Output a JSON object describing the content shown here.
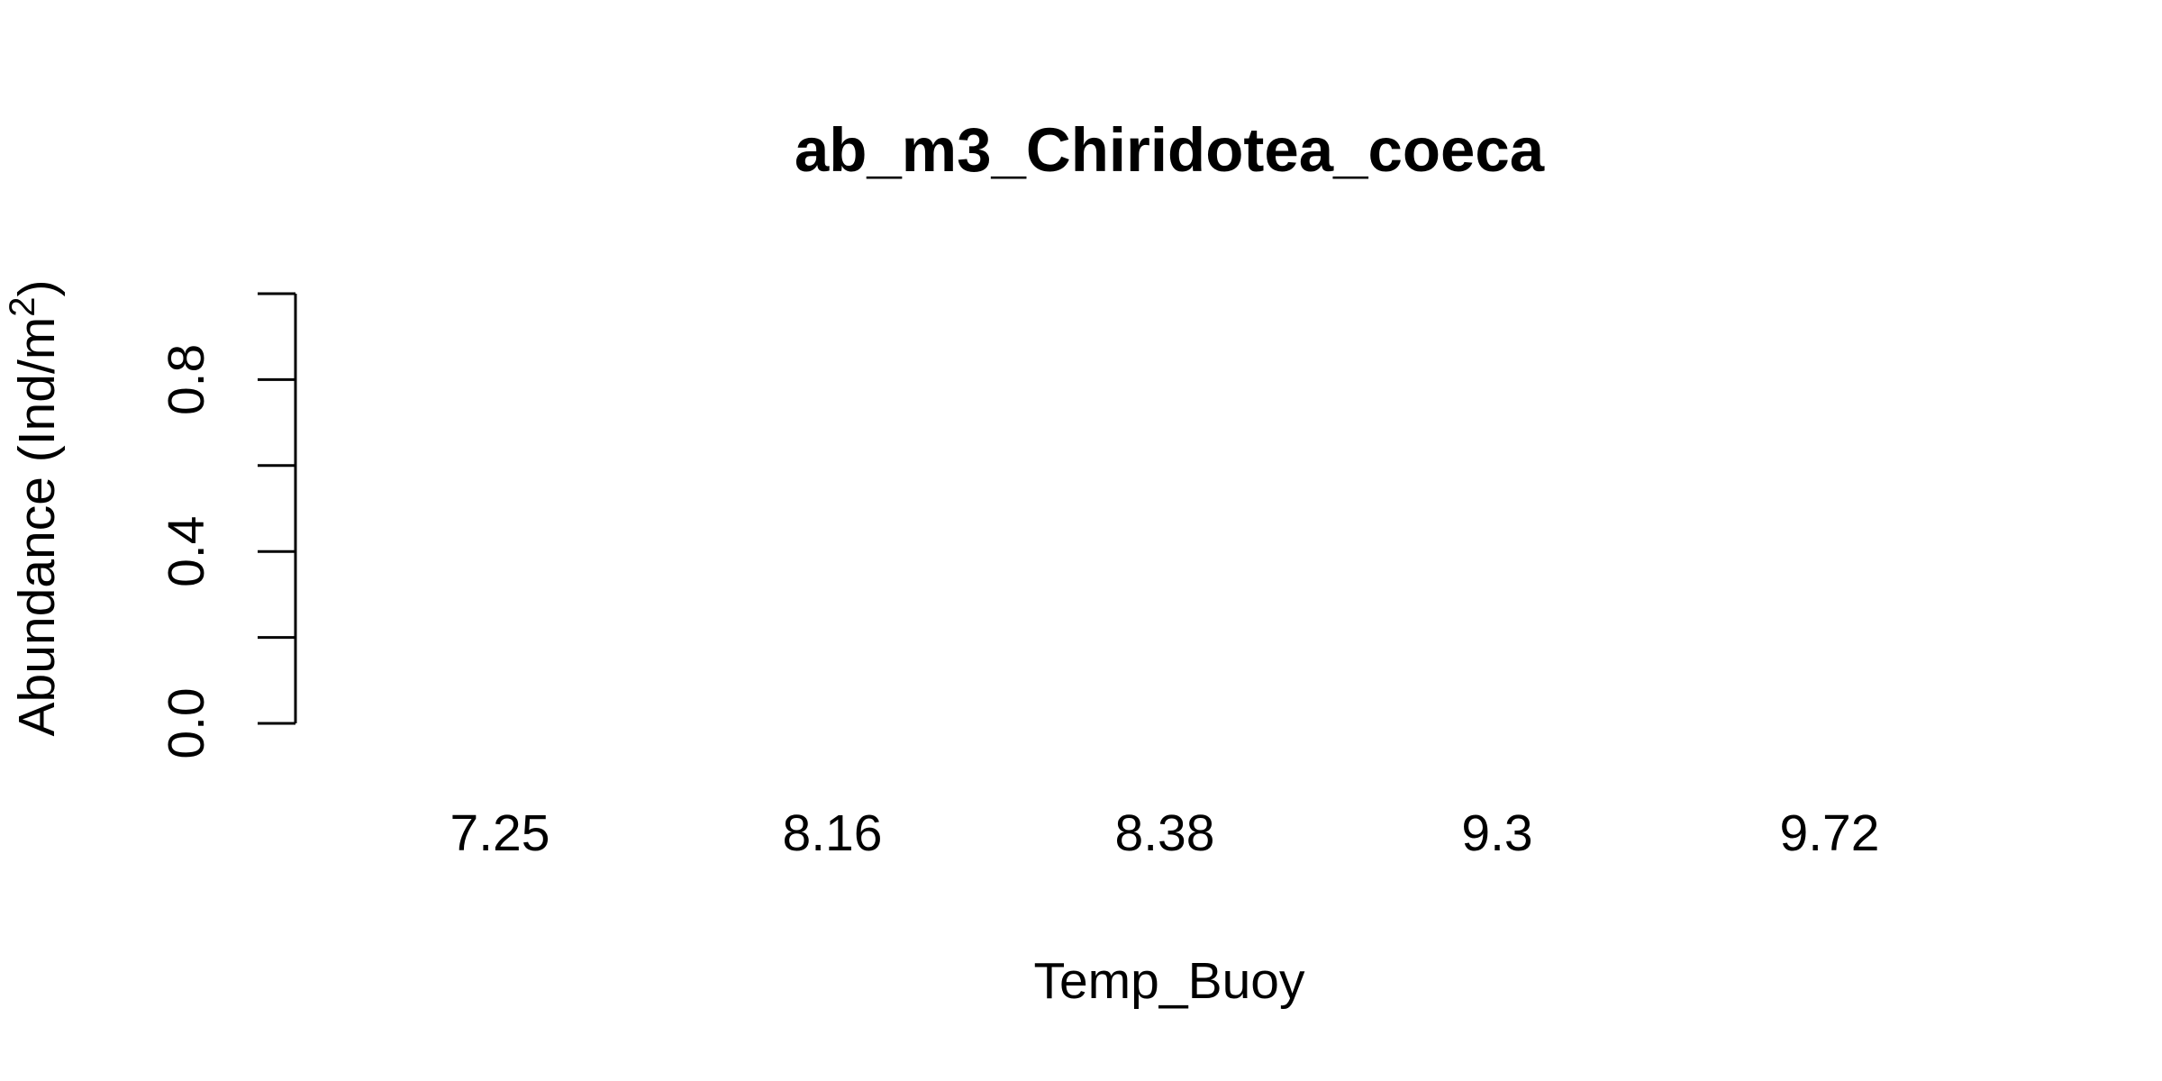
{
  "chart_data": {
    "type": "bar",
    "title": "ab_m3_Chiridotea_coeca",
    "xlabel": "Temp_Buoy",
    "ylabel_prefix": "Abundance (Ind/m",
    "ylabel_superscript": "2",
    "ylabel_suffix": ")",
    "categories": [
      "7.25",
      "8.16",
      "8.38",
      "9.3",
      "9.72"
    ],
    "values": [
      0,
      0,
      0,
      0,
      0
    ],
    "ylim": [
      0,
      1
    ],
    "y_ticks": [
      0,
      0.2,
      0.4,
      0.6,
      0.8,
      1.0
    ],
    "y_tick_labels": [
      "0.0",
      "",
      "0.4",
      "",
      "0.8",
      ""
    ],
    "grid": false,
    "legend": "none",
    "bar_color": "#bebebe"
  }
}
